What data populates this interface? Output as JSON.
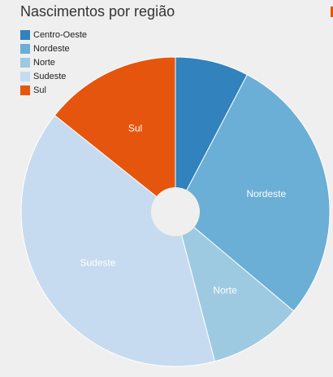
{
  "chart_data": {
    "type": "pie",
    "title": "Nascimentos por região",
    "legend_position": "top-left",
    "slices": [
      {
        "name": "Centro-Oeste",
        "value": 7.7,
        "color": "#3182bd",
        "label": ""
      },
      {
        "name": "Nordeste",
        "value": 28.4,
        "color": "#6baed6",
        "label": "Nordeste"
      },
      {
        "name": "Norte",
        "value": 9.8,
        "color": "#9ecae1",
        "label": "Norte"
      },
      {
        "name": "Sudeste",
        "value": 39.8,
        "color": "#c6dbef",
        "label": "Sudeste"
      },
      {
        "name": "Sul",
        "value": 14.3,
        "color": "#e6550d",
        "label": "Sul"
      }
    ]
  }
}
